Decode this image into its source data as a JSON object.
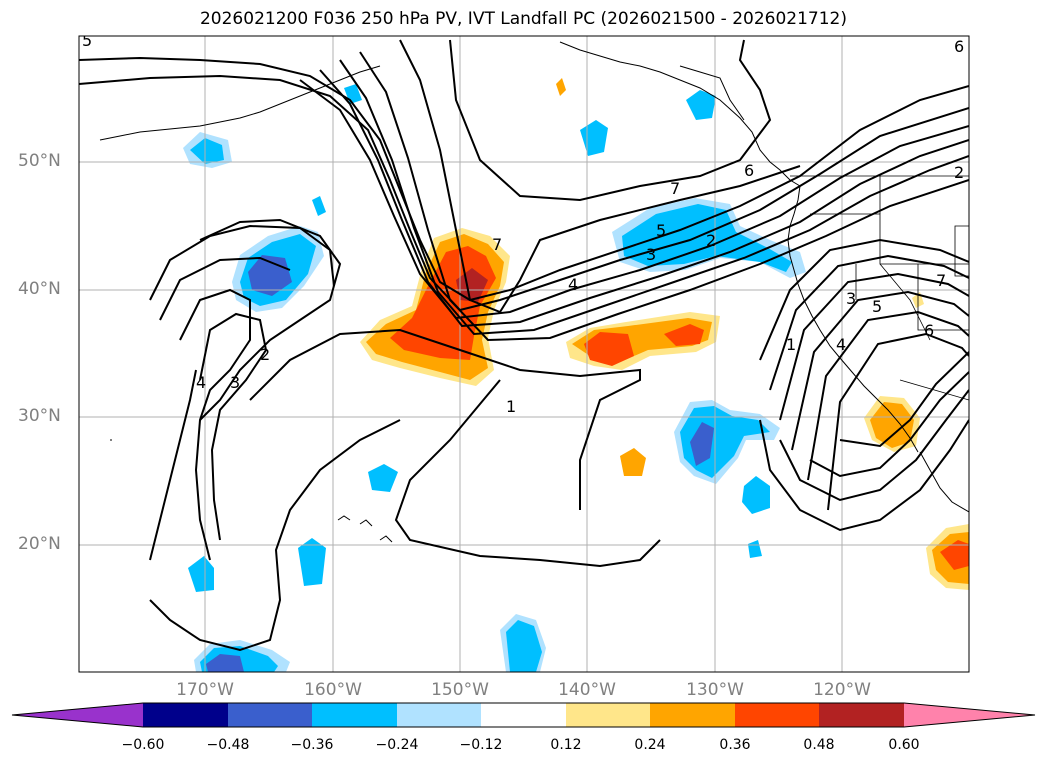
{
  "title": "2026021200 F036 250 hPa PV, IVT Landfall PC (2026021500 - 2026021712)",
  "lat_labels": [
    "50°N",
    "40°N",
    "30°N",
    "20°N"
  ],
  "lon_labels": [
    "170°W",
    "160°W",
    "150°W",
    "140°W",
    "130°W",
    "120°W"
  ],
  "contour_labels": [
    "1",
    "2",
    "3",
    "4",
    "5",
    "6",
    "7"
  ],
  "colorbar": {
    "ticks": [
      "−0.60",
      "−0.48",
      "−0.36",
      "−0.24",
      "−0.12",
      "0.12",
      "0.24",
      "0.36",
      "0.48",
      "0.60"
    ],
    "colors": [
      "#9932cc",
      "#00008b",
      "#3a5fcd",
      "#00bfff",
      "#b0e2ff",
      "#ffffff",
      "#ffe68a",
      "#ffa500",
      "#ff4500",
      "#b22222",
      "#ff82ab"
    ]
  },
  "colors": {
    "land_line": "#000000",
    "grid": "#b0b0b0",
    "contour": "#000000"
  }
}
